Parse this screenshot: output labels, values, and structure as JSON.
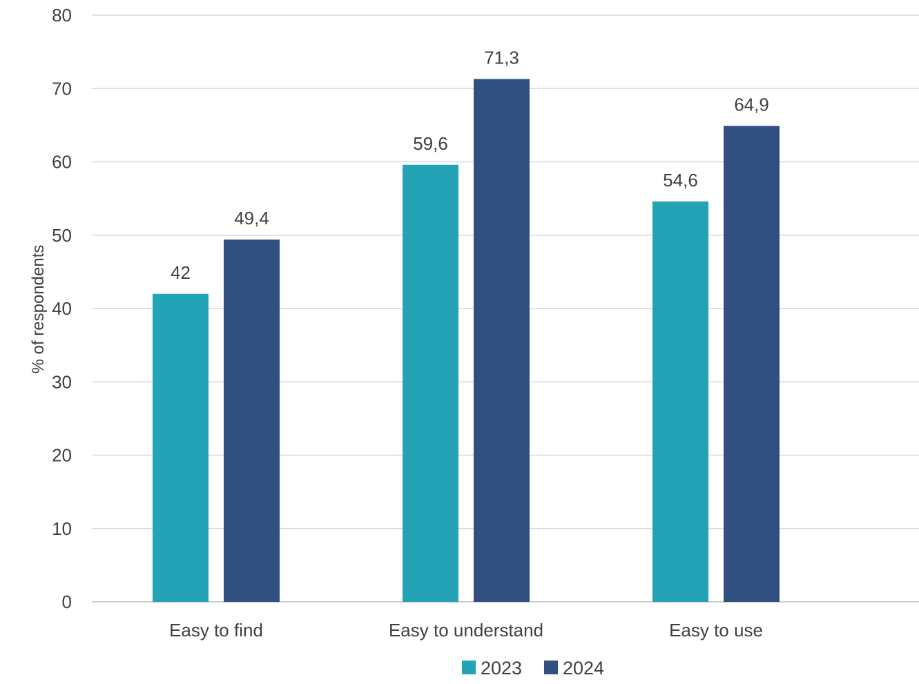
{
  "chart_data": {
    "type": "bar",
    "title": "",
    "xlabel": "",
    "ylabel": "% of respondents",
    "ylim": [
      0,
      80
    ],
    "yticks": [
      0,
      10,
      20,
      30,
      40,
      50,
      60,
      70,
      80
    ],
    "grid": true,
    "legend_position": "bottom",
    "categories": [
      "Easy to find",
      "Easy to understand",
      "Easy to use"
    ],
    "series": [
      {
        "name": "2023",
        "color": "#23a3b5",
        "values": [
          42,
          59.6,
          54.6
        ],
        "labels": [
          "42",
          "59,6",
          "54,6"
        ]
      },
      {
        "name": "2024",
        "color": "#324f82",
        "values": [
          49.4,
          71.3,
          64.9
        ],
        "labels": [
          "49,4",
          "71,3",
          "64,9"
        ]
      }
    ]
  }
}
